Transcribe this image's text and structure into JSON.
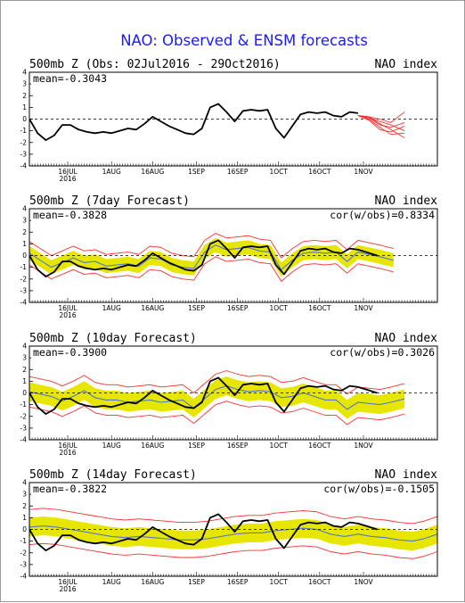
{
  "title": "NAO: Observed & ENSM forecasts",
  "colors": {
    "title": "#1a1aff",
    "observed": "#000000",
    "ensemble_mean": "#5577cc",
    "spread_band": "#e6e600",
    "members": "#ff3030"
  },
  "chart_data": [
    {
      "type": "line",
      "title": "500mb Z (Obs: 02Jul2016 - 29Oct2016)",
      "right_label": "NAO index",
      "mean_label": "mean=-0.3043",
      "cor_label": "",
      "ylim": [
        -4,
        4
      ],
      "yticks": [
        "4",
        "3",
        "2",
        "1",
        "0",
        "-1",
        "-2",
        "-3",
        "-4"
      ],
      "xlim": [
        0,
        149
      ],
      "xticks": [
        {
          "day": 14,
          "label": "16JUL",
          "sublabel": "2016"
        },
        {
          "day": 30,
          "label": "1AUG",
          "sublabel": ""
        },
        {
          "day": 45,
          "label": "16AUG",
          "sublabel": ""
        },
        {
          "day": 61,
          "label": "1SEP",
          "sublabel": ""
        },
        {
          "day": 76,
          "label": "16SEP",
          "sublabel": ""
        },
        {
          "day": 91,
          "label": "1OCT",
          "sublabel": ""
        },
        {
          "day": 106,
          "label": "16OCT",
          "sublabel": ""
        },
        {
          "day": 122,
          "label": "1NOV",
          "sublabel": ""
        }
      ],
      "observed": {
        "x": [
          0,
          3,
          6,
          9,
          12,
          15,
          18,
          21,
          24,
          27,
          30,
          33,
          36,
          39,
          42,
          45,
          48,
          51,
          54,
          57,
          60,
          63,
          66,
          69,
          72,
          75,
          78,
          81,
          84,
          87,
          90,
          93,
          96,
          99,
          102,
          105,
          108,
          111,
          114,
          117,
          120
        ],
        "y": [
          0.0,
          -1.2,
          -1.8,
          -1.4,
          -0.5,
          -0.5,
          -0.9,
          -1.1,
          -1.2,
          -1.1,
          -1.2,
          -1.0,
          -0.8,
          -0.9,
          -0.4,
          0.2,
          -0.2,
          -0.6,
          -0.9,
          -1.2,
          -1.3,
          -0.8,
          1.0,
          1.3,
          0.6,
          -0.2,
          0.7,
          0.8,
          0.7,
          0.8,
          -0.8,
          -1.6,
          -0.6,
          0.4,
          0.6,
          0.5,
          0.6,
          0.3,
          0.2,
          0.6,
          0.5
        ]
      },
      "members": [
        {
          "x": [
            120,
            124,
            128,
            132,
            137
          ],
          "y": [
            0.3,
            0.2,
            -0.4,
            -0.9,
            -1.6
          ]
        },
        {
          "x": [
            120,
            124,
            128,
            132,
            137
          ],
          "y": [
            0.3,
            0.1,
            -0.2,
            -0.5,
            -1.0
          ]
        },
        {
          "x": [
            120,
            124,
            128,
            132,
            137
          ],
          "y": [
            0.3,
            0.0,
            -0.7,
            -1.3,
            -1.2
          ]
        },
        {
          "x": [
            120,
            124,
            128,
            132,
            137
          ],
          "y": [
            0.3,
            0.2,
            0.0,
            -0.3,
            0.6
          ]
        },
        {
          "x": [
            120,
            124,
            128,
            132,
            137
          ],
          "y": [
            0.3,
            -0.1,
            -0.9,
            -1.1,
            -0.6
          ]
        },
        {
          "x": [
            120,
            124,
            128,
            132,
            137
          ],
          "y": [
            0.3,
            0.1,
            -0.5,
            -0.7,
            -0.3
          ]
        }
      ]
    },
    {
      "type": "line",
      "title": "500mb Z (7day Forecast)",
      "right_label": "NAO index",
      "mean_label": "mean=-0.3828",
      "cor_label": "cor(w/obs)=0.8334",
      "ylim": [
        -4,
        4
      ],
      "yticks": [
        "4",
        "3",
        "2",
        "1",
        "0",
        "-1",
        "-2",
        "-3",
        "-4"
      ],
      "xlim": [
        0,
        149
      ],
      "xticks": [
        {
          "day": 14,
          "label": "16JUL",
          "sublabel": "2016"
        },
        {
          "day": 30,
          "label": "1AUG",
          "sublabel": ""
        },
        {
          "day": 45,
          "label": "16AUG",
          "sublabel": ""
        },
        {
          "day": 61,
          "label": "1SEP",
          "sublabel": ""
        },
        {
          "day": 76,
          "label": "16SEP",
          "sublabel": ""
        },
        {
          "day": 91,
          "label": "1OCT",
          "sublabel": ""
        },
        {
          "day": 106,
          "label": "16OCT",
          "sublabel": ""
        },
        {
          "day": 122,
          "label": "1NOV",
          "sublabel": ""
        }
      ],
      "observed": {
        "x": [
          0,
          3,
          6,
          9,
          12,
          15,
          18,
          21,
          24,
          27,
          30,
          33,
          36,
          39,
          42,
          45,
          48,
          51,
          54,
          57,
          60,
          63,
          66,
          69,
          72,
          75,
          78,
          81,
          84,
          87,
          90,
          93,
          96,
          99,
          102,
          105,
          108,
          111,
          114,
          117,
          120,
          123,
          127
        ],
        "y": [
          0.0,
          -1.2,
          -1.8,
          -1.4,
          -0.5,
          -0.5,
          -0.9,
          -1.1,
          -1.2,
          -1.1,
          -1.2,
          -1.0,
          -0.8,
          -0.9,
          -0.4,
          0.2,
          -0.2,
          -0.6,
          -0.9,
          -1.2,
          -1.3,
          -0.8,
          1.0,
          1.3,
          0.6,
          -0.2,
          0.7,
          0.8,
          0.7,
          0.8,
          -0.8,
          -1.6,
          -0.6,
          0.4,
          0.6,
          0.5,
          0.6,
          0.3,
          0.2,
          0.6,
          0.5,
          0.3,
          0.0
        ]
      },
      "forecast_mean": {
        "x": [
          0,
          4,
          8,
          12,
          16,
          20,
          24,
          28,
          32,
          36,
          40,
          44,
          48,
          52,
          56,
          60,
          64,
          68,
          72,
          76,
          80,
          84,
          88,
          92,
          96,
          100,
          104,
          108,
          112,
          116,
          120,
          124,
          128,
          133
        ],
        "y": [
          0.2,
          -0.4,
          -1.0,
          -0.6,
          -0.2,
          -0.6,
          -0.5,
          -0.9,
          -0.8,
          -0.7,
          -0.9,
          -0.2,
          -0.3,
          -0.8,
          -1.0,
          -1.1,
          0.3,
          0.9,
          0.5,
          0.6,
          0.7,
          0.4,
          0.3,
          -1.2,
          -0.4,
          0.2,
          0.3,
          0.2,
          0.3,
          -0.5,
          0.3,
          0.1,
          -0.1,
          -0.4
        ]
      },
      "band_halfwidth": 0.6,
      "envelope_halfwidth": 1.0
    },
    {
      "type": "line",
      "title": "500mb Z (10day Forecast)",
      "right_label": "NAO index",
      "mean_label": "mean=-0.3900",
      "cor_label": "cor(w/obs)=0.3026",
      "ylim": [
        -4,
        4
      ],
      "yticks": [
        "4",
        "3",
        "2",
        "1",
        "0",
        "-1",
        "-2",
        "-3",
        "-4"
      ],
      "xlim": [
        0,
        149
      ],
      "xticks": [
        {
          "day": 14,
          "label": "16JUL",
          "sublabel": "2016"
        },
        {
          "day": 30,
          "label": "1AUG",
          "sublabel": ""
        },
        {
          "day": 45,
          "label": "16AUG",
          "sublabel": ""
        },
        {
          "day": 61,
          "label": "1SEP",
          "sublabel": ""
        },
        {
          "day": 76,
          "label": "16SEP",
          "sublabel": ""
        },
        {
          "day": 91,
          "label": "1OCT",
          "sublabel": ""
        },
        {
          "day": 106,
          "label": "16OCT",
          "sublabel": ""
        },
        {
          "day": 122,
          "label": "1NOV",
          "sublabel": ""
        }
      ],
      "observed": {
        "x": [
          0,
          3,
          6,
          9,
          12,
          15,
          18,
          21,
          24,
          27,
          30,
          33,
          36,
          39,
          42,
          45,
          48,
          51,
          54,
          57,
          60,
          63,
          66,
          69,
          72,
          75,
          78,
          81,
          84,
          87,
          90,
          93,
          96,
          99,
          102,
          105,
          108,
          111,
          114,
          117,
          120,
          123,
          127
        ],
        "y": [
          0.0,
          -1.2,
          -1.8,
          -1.4,
          -0.5,
          -0.5,
          -0.9,
          -1.1,
          -1.2,
          -1.1,
          -1.2,
          -1.0,
          -0.8,
          -0.9,
          -0.4,
          0.2,
          -0.2,
          -0.6,
          -0.9,
          -1.2,
          -1.3,
          -0.8,
          1.0,
          1.3,
          0.6,
          -0.2,
          0.7,
          0.8,
          0.7,
          0.8,
          -0.8,
          -1.6,
          -0.6,
          0.4,
          0.6,
          0.5,
          0.6,
          0.3,
          0.2,
          0.6,
          0.5,
          0.3,
          0.0
        ]
      },
      "forecast_mean": {
        "x": [
          0,
          4,
          8,
          12,
          16,
          20,
          24,
          28,
          32,
          36,
          40,
          44,
          48,
          52,
          56,
          60,
          64,
          68,
          72,
          76,
          80,
          84,
          88,
          92,
          96,
          100,
          104,
          108,
          112,
          116,
          120,
          124,
          128,
          132,
          137
        ],
        "y": [
          0.1,
          -0.1,
          -0.3,
          -0.7,
          -0.3,
          0.2,
          -0.4,
          -0.6,
          -0.6,
          -0.8,
          -0.7,
          -0.6,
          -0.8,
          -0.7,
          -0.6,
          -1.3,
          -0.5,
          0.3,
          0.6,
          0.3,
          0.1,
          0.2,
          0.1,
          -0.4,
          -0.3,
          0.0,
          -0.3,
          -0.6,
          -0.6,
          -1.4,
          -0.8,
          -0.9,
          -1.0,
          -0.8,
          -0.5
        ]
      },
      "band_halfwidth": 0.8,
      "envelope_halfwidth": 1.3
    },
    {
      "type": "line",
      "title": "500mb Z (14day Forecast)",
      "right_label": "NAO index",
      "mean_label": "mean=-0.3822",
      "cor_label": "cor(w/obs)=-0.1505",
      "ylim": [
        -4,
        4
      ],
      "yticks": [
        "4",
        "3",
        "2",
        "1",
        "0",
        "-1",
        "-2",
        "-3",
        "-4"
      ],
      "xlim": [
        0,
        149
      ],
      "xticks": [
        {
          "day": 14,
          "label": "16JUL",
          "sublabel": "2016"
        },
        {
          "day": 30,
          "label": "1AUG",
          "sublabel": ""
        },
        {
          "day": 45,
          "label": "16AUG",
          "sublabel": ""
        },
        {
          "day": 61,
          "label": "1SEP",
          "sublabel": ""
        },
        {
          "day": 76,
          "label": "16SEP",
          "sublabel": ""
        },
        {
          "day": 91,
          "label": "1OCT",
          "sublabel": ""
        },
        {
          "day": 106,
          "label": "16OCT",
          "sublabel": ""
        },
        {
          "day": 122,
          "label": "1NOV",
          "sublabel": ""
        }
      ],
      "observed": {
        "x": [
          0,
          3,
          6,
          9,
          12,
          15,
          18,
          21,
          24,
          27,
          30,
          33,
          36,
          39,
          42,
          45,
          48,
          51,
          54,
          57,
          60,
          63,
          66,
          69,
          72,
          75,
          78,
          81,
          84,
          87,
          90,
          93,
          96,
          99,
          102,
          105,
          108,
          111,
          114,
          117,
          120,
          123,
          127
        ],
        "y": [
          0.0,
          -1.2,
          -1.8,
          -1.4,
          -0.5,
          -0.5,
          -0.9,
          -1.1,
          -1.2,
          -1.1,
          -1.2,
          -1.0,
          -0.8,
          -0.9,
          -0.4,
          0.2,
          -0.2,
          -0.6,
          -0.9,
          -1.2,
          -1.3,
          -0.8,
          1.0,
          1.3,
          0.6,
          -0.2,
          0.7,
          0.8,
          0.7,
          0.8,
          -0.8,
          -1.6,
          -0.6,
          0.4,
          0.6,
          0.5,
          0.6,
          0.3,
          0.2,
          0.6,
          0.5,
          0.3,
          0.0
        ]
      },
      "forecast_mean": {
        "x": [
          0,
          5,
          10,
          15,
          20,
          25,
          30,
          35,
          40,
          45,
          50,
          55,
          60,
          65,
          70,
          75,
          80,
          85,
          90,
          95,
          100,
          105,
          110,
          115,
          120,
          125,
          130,
          135,
          140,
          144,
          149
        ],
        "y": [
          0.2,
          0.3,
          0.2,
          0.0,
          -0.2,
          -0.4,
          -0.6,
          -0.7,
          -0.6,
          -0.7,
          -0.8,
          -0.9,
          -0.9,
          -0.8,
          -0.6,
          -0.4,
          -0.3,
          -0.3,
          -0.1,
          0.0,
          0.1,
          0.0,
          -0.4,
          -0.6,
          -0.4,
          -0.6,
          -0.7,
          -0.9,
          -1.0,
          -0.8,
          -0.4
        ]
      },
      "band_halfwidth": 0.8,
      "envelope_halfwidth": 1.5
    }
  ]
}
